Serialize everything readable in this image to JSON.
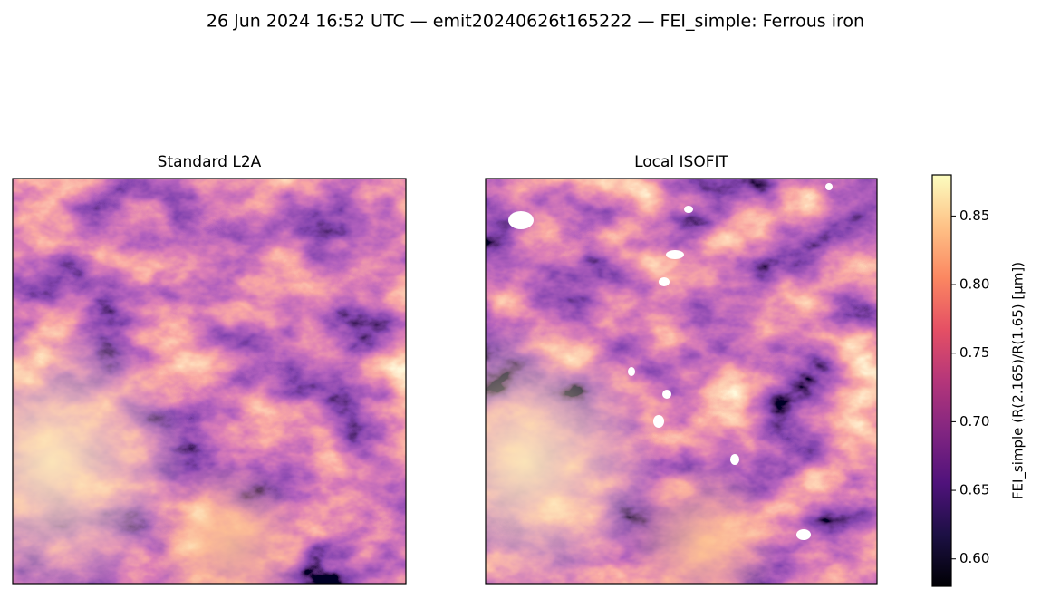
{
  "chart_data": {
    "type": "image",
    "title": "26 Jun 2024 16:52 UTC — emit20240626t165222 — FEI_simple: Ferrous iron",
    "panels": [
      {
        "title": "Standard L2A"
      },
      {
        "title": "Local ISOFIT"
      }
    ],
    "colorbar": {
      "label": "FEI_simple  (R(2.165)/R(1.65)  [µm])",
      "colormap": "magma",
      "lim": [
        0.58,
        0.88
      ],
      "ticks": [
        {
          "value": 0.6,
          "label": "0.60"
        },
        {
          "value": 0.65,
          "label": "0.65"
        },
        {
          "value": 0.7,
          "label": "0.70"
        },
        {
          "value": 0.75,
          "label": "0.75"
        },
        {
          "value": 0.8,
          "label": "0.80"
        },
        {
          "value": 0.85,
          "label": "0.85"
        }
      ]
    }
  }
}
